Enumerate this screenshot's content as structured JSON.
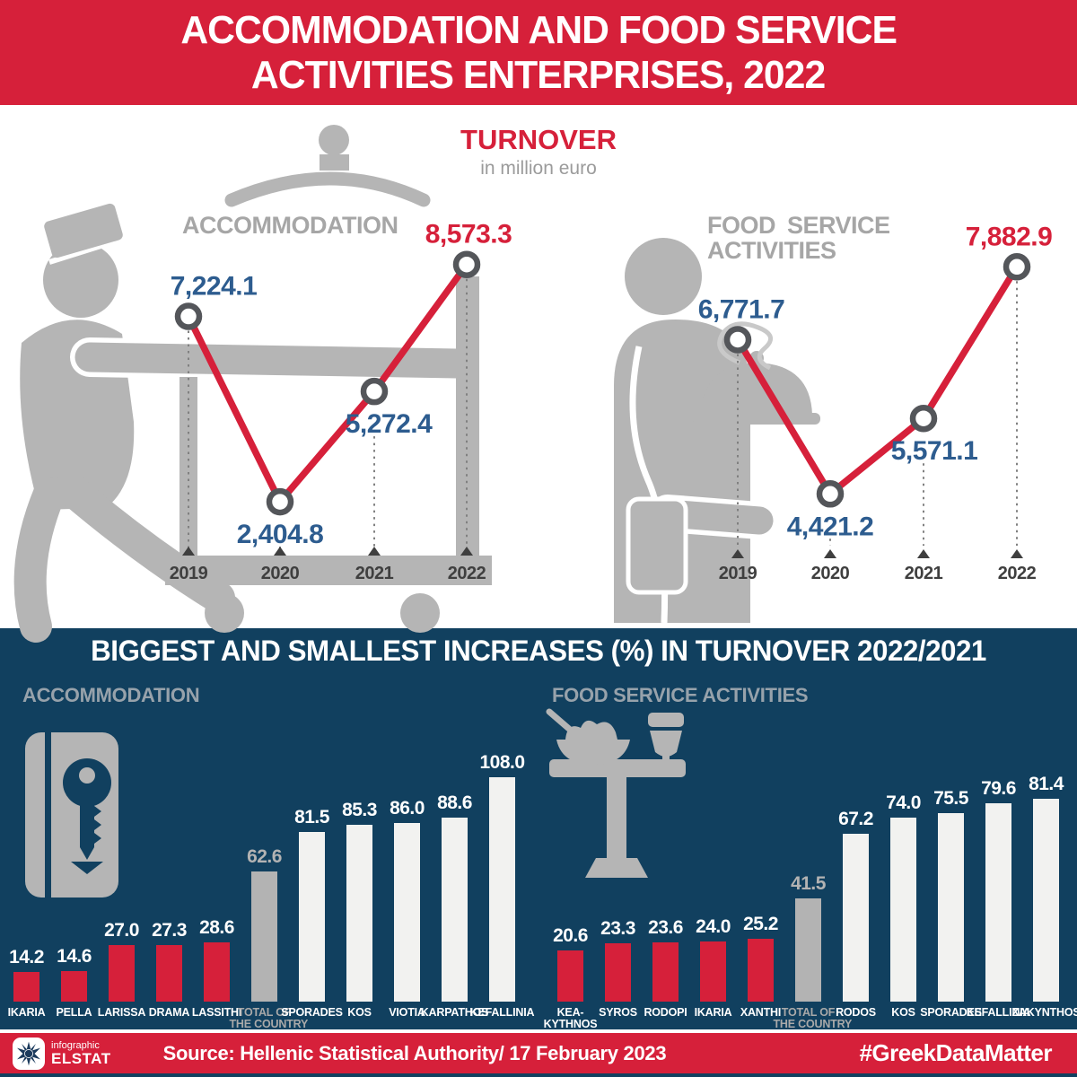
{
  "header": {
    "title_line1": "ACCOMMODATION AND FOOD SERVICE",
    "title_line2": "ACTIVITIES ENTERPRISES, 2022"
  },
  "turnover": {
    "title": "TURNOVER",
    "subtitle": "in million euro"
  },
  "increases": {
    "title": "BIGGEST AND SMALLEST INCREASES (%) IN TURNOVER 2022/2021"
  },
  "chart_data": [
    {
      "id": "accommodation_turnover",
      "type": "line",
      "title": "ACCOMMODATION",
      "x": [
        "2019",
        "2020",
        "2021",
        "2022"
      ],
      "values": [
        7224.1,
        2404.8,
        5272.4,
        8573.3
      ],
      "value_labels": [
        "7,224.1",
        "2,404.8",
        "5,272.4",
        "8,573.3"
      ],
      "label_position": [
        "above",
        "below",
        "below",
        "above"
      ],
      "label_colors": [
        "#2d5c8f",
        "#2d5c8f",
        "#2d5c8f",
        "#d6203a"
      ],
      "unit": "million euro",
      "ylim": [
        2150,
        8800
      ],
      "line_color": "#d6203a",
      "marker_fill": "#ffffff",
      "marker_stroke": "#54565a",
      "grid": false,
      "legend": "none"
    },
    {
      "id": "food_service_turnover",
      "type": "line",
      "title": "FOOD SERVICE\nACTIVITIES",
      "x": [
        "2019",
        "2020",
        "2021",
        "2022"
      ],
      "values": [
        6771.7,
        4421.2,
        5571.1,
        7882.9
      ],
      "value_labels": [
        "6,771.7",
        "4,421.2",
        "5,571.1",
        "7,882.9"
      ],
      "label_position": [
        "above",
        "below",
        "below",
        "above"
      ],
      "label_colors": [
        "#2d5c8f",
        "#2d5c8f",
        "#2d5c8f",
        "#d6203a"
      ],
      "unit": "million euro",
      "ylim": [
        3700,
        8160
      ],
      "line_color": "#d6203a",
      "marker_fill": "#ffffff",
      "marker_stroke": "#54565a",
      "grid": false,
      "legend": "none"
    },
    {
      "id": "accommodation_increase",
      "type": "bar",
      "title": "ACCOMMODATION",
      "categories": [
        "IKARIA",
        "PELLA",
        "LARISSA",
        "DRAMA",
        "LASSITHI",
        "TOTAL OF\nTHE COUNTRY",
        "SPORADES",
        "KOS",
        "VIOTIA",
        "KARPATHOS",
        "KEFALLINIA"
      ],
      "values": [
        14.2,
        14.6,
        27.0,
        27.3,
        28.6,
        62.6,
        81.5,
        85.3,
        86.0,
        88.6,
        108.0
      ],
      "value_labels": [
        "14.2",
        "14.6",
        "27.0",
        "27.3",
        "28.6",
        "62.6",
        "81.5",
        "85.3",
        "86.0",
        "88.6",
        "108.0"
      ],
      "roles": [
        "smallest",
        "smallest",
        "smallest",
        "smallest",
        "smallest",
        "total",
        "biggest",
        "biggest",
        "biggest",
        "biggest",
        "biggest"
      ],
      "unit": "%",
      "ylim": [
        0,
        110
      ],
      "bar_colors": {
        "smallest": "#d6203a",
        "total": "#b3b3b3",
        "biggest": "#f2f2f0"
      },
      "value_text_colors": {
        "smallest": "#ffffff",
        "total": "#b3b3b3",
        "biggest": "#ffffff"
      },
      "category_text_colors": {
        "smallest": "#ffffff",
        "total": "#a9a9a9",
        "biggest": "#ffffff"
      }
    },
    {
      "id": "food_service_increase",
      "type": "bar",
      "title": "FOOD SERVICE ACTIVITIES",
      "categories": [
        "KEA-\nKYTHNOS",
        "SYROS",
        "RODOPI",
        "IKARIA",
        "XANTHI",
        "TOTAL OF\nTHE COUNTRY",
        "RODOS",
        "KOS",
        "SPORADES",
        "KEFALLINIA",
        "ZAKYNTHOS"
      ],
      "values": [
        20.6,
        23.3,
        23.6,
        24.0,
        25.2,
        41.5,
        67.2,
        74.0,
        75.5,
        79.6,
        81.4
      ],
      "value_labels": [
        "20.6",
        "23.3",
        "23.6",
        "24.0",
        "25.2",
        "41.5",
        "67.2",
        "74.0",
        "75.5",
        "79.6",
        "81.4"
      ],
      "roles": [
        "smallest",
        "smallest",
        "smallest",
        "smallest",
        "smallest",
        "total",
        "biggest",
        "biggest",
        "biggest",
        "biggest",
        "biggest"
      ],
      "unit": "%",
      "ylim": [
        0,
        85
      ],
      "bar_colors": {
        "smallest": "#d6203a",
        "total": "#b3b3b3",
        "biggest": "#f2f2f0"
      },
      "value_text_colors": {
        "smallest": "#ffffff",
        "total": "#b3b3b3",
        "biggest": "#ffffff"
      },
      "category_text_colors": {
        "smallest": "#ffffff",
        "total": "#a9a9a9",
        "biggest": "#ffffff"
      }
    }
  ],
  "footer": {
    "logo_small": "infographic",
    "logo_name": "ELSTAT",
    "source": "Source: Hellenic Statistical Authority/ 17 February 2023",
    "hashtag": "#GreekDataMatter"
  },
  "colors": {
    "accent_red": "#d6203a",
    "dark_blue": "#11405f",
    "silhouette_gray": "#b5b5b5",
    "heading_gray": "#a6a6a6",
    "value_blue": "#2d5c8f",
    "bar_white": "#f2f2f0",
    "bar_gray": "#b3b3b3",
    "year_text": "#3f3f3f"
  }
}
